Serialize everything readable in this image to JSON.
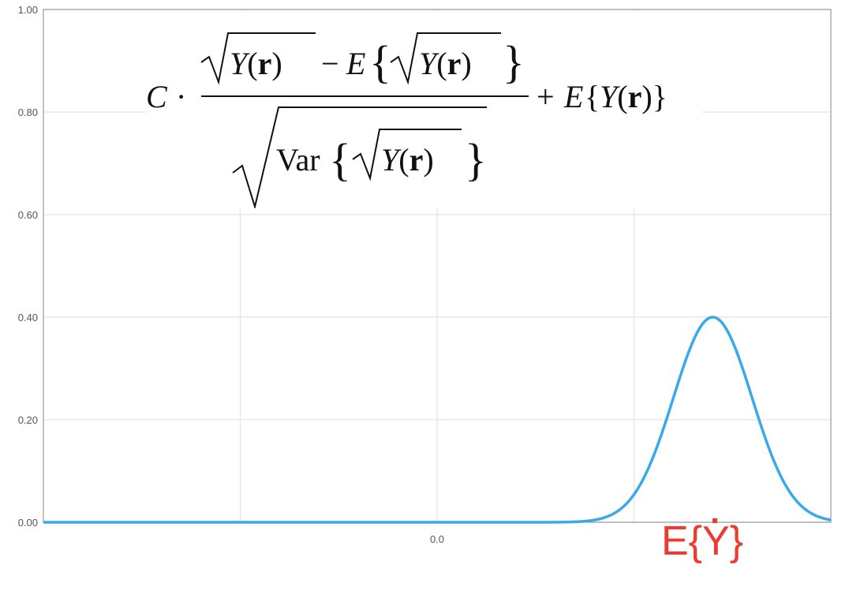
{
  "chart_data": {
    "type": "line",
    "y_tick_labels": [
      "0.00",
      "0.20",
      "0.40",
      "0.60",
      "0.80",
      "1.00"
    ],
    "y_ticks": [
      0,
      0.2,
      0.4,
      0.6,
      0.8,
      1.0
    ],
    "x_tick_labels": [
      "0.0"
    ],
    "x_ticks": [
      0
    ],
    "ylim": [
      0,
      1.0
    ],
    "xlim": [
      -2,
      2
    ],
    "series": [
      {
        "color": "#3aa9e8",
        "curve": "normal_pdf",
        "mean": 1.4,
        "sd": 0.2,
        "peak": 0.4
      }
    ],
    "x_gridlines": [
      -1,
      0,
      1
    ],
    "grid": true,
    "annotation": "E{Y}",
    "annotation_color": "#f03a2e",
    "formula": "C · (√Y(r) − E{√Y(r)}) / √Var{√Y(r)} + E{Y(r)}"
  }
}
